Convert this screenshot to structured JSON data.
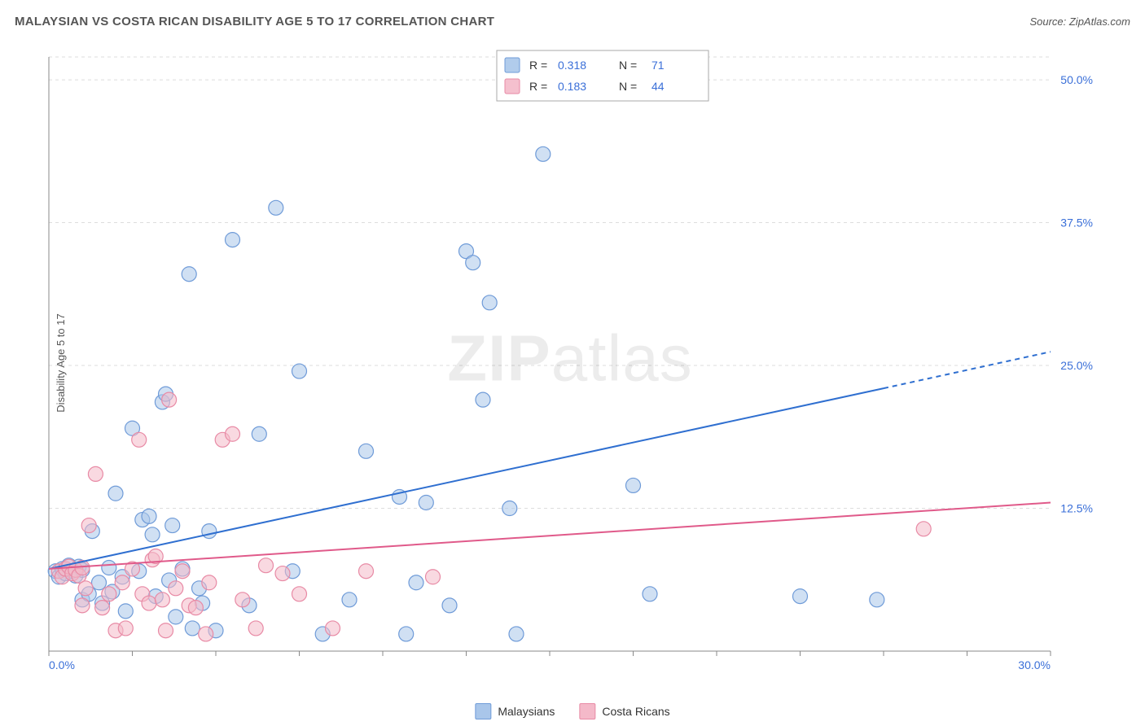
{
  "title": "MALAYSIAN VS COSTA RICAN DISABILITY AGE 5 TO 17 CORRELATION CHART",
  "source_label": "Source: ",
  "source_name": "ZipAtlas.com",
  "y_axis_label": "Disability Age 5 to 17",
  "watermark_zip": "ZIP",
  "watermark_atlas": "atlas",
  "chart": {
    "type": "scatter",
    "xlim": [
      0,
      30
    ],
    "ylim": [
      0,
      52
    ],
    "x_ticks": [
      0,
      2.5,
      5,
      7.5,
      10,
      12.5,
      15,
      17.5,
      20,
      22.5,
      25,
      27.5,
      30
    ],
    "x_tick_labels": {
      "0": "0.0%",
      "30": "30.0%"
    },
    "y_gridlines": [
      12.5,
      25,
      37.5,
      50,
      52
    ],
    "y_tick_labels": {
      "12.5": "12.5%",
      "25": "25.0%",
      "37.5": "37.5%",
      "50": "50.0%"
    },
    "grid_color": "#dddddd",
    "axis_color": "#888888",
    "marker_radius": 9,
    "marker_stroke_width": 1.2,
    "line_width": 2,
    "series": [
      {
        "name": "Malaysians",
        "fill": "#a9c6ea",
        "fill_opacity": 0.55,
        "stroke": "#6f9bd8",
        "line_color": "#2f6fd0",
        "R": "0.318",
        "N": "71",
        "trend": {
          "x1": 0,
          "y1": 7.2,
          "x2": 25,
          "y2": 23.0,
          "dash_from_x": 25,
          "x_end": 30,
          "y_end": 26.2
        },
        "points": [
          [
            0.2,
            7.0
          ],
          [
            0.3,
            6.5
          ],
          [
            0.4,
            7.2
          ],
          [
            0.5,
            6.8
          ],
          [
            0.6,
            7.5
          ],
          [
            0.7,
            7.0
          ],
          [
            0.8,
            6.6
          ],
          [
            0.9,
            7.4
          ],
          [
            1.0,
            7.1
          ],
          [
            1.0,
            4.5
          ],
          [
            1.2,
            5.0
          ],
          [
            1.3,
            10.5
          ],
          [
            1.5,
            6.0
          ],
          [
            1.6,
            4.2
          ],
          [
            1.8,
            7.3
          ],
          [
            1.9,
            5.2
          ],
          [
            2.0,
            13.8
          ],
          [
            2.2,
            6.5
          ],
          [
            2.3,
            3.5
          ],
          [
            2.5,
            19.5
          ],
          [
            2.7,
            7.0
          ],
          [
            2.8,
            11.5
          ],
          [
            3.0,
            11.8
          ],
          [
            3.1,
            10.2
          ],
          [
            3.2,
            4.8
          ],
          [
            3.4,
            21.8
          ],
          [
            3.5,
            22.5
          ],
          [
            3.6,
            6.2
          ],
          [
            3.7,
            11.0
          ],
          [
            3.8,
            3.0
          ],
          [
            4.0,
            7.2
          ],
          [
            4.2,
            33.0
          ],
          [
            4.3,
            2.0
          ],
          [
            4.5,
            5.5
          ],
          [
            4.6,
            4.2
          ],
          [
            4.8,
            10.5
          ],
          [
            5.0,
            1.8
          ],
          [
            5.5,
            36.0
          ],
          [
            6.0,
            4.0
          ],
          [
            6.3,
            19.0
          ],
          [
            6.8,
            38.8
          ],
          [
            7.3,
            7.0
          ],
          [
            7.5,
            24.5
          ],
          [
            8.2,
            1.5
          ],
          [
            9.0,
            4.5
          ],
          [
            9.5,
            17.5
          ],
          [
            10.5,
            13.5
          ],
          [
            10.7,
            1.5
          ],
          [
            11.0,
            6.0
          ],
          [
            11.3,
            13.0
          ],
          [
            12.0,
            4.0
          ],
          [
            12.5,
            35.0
          ],
          [
            12.7,
            34.0
          ],
          [
            13.0,
            22.0
          ],
          [
            13.2,
            30.5
          ],
          [
            13.8,
            12.5
          ],
          [
            14.0,
            1.5
          ],
          [
            14.8,
            43.5
          ],
          [
            17.5,
            14.5
          ],
          [
            18.0,
            5.0
          ],
          [
            22.5,
            4.8
          ],
          [
            24.8,
            4.5
          ]
        ]
      },
      {
        "name": "Costa Ricans",
        "fill": "#f4b9c9",
        "fill_opacity": 0.55,
        "stroke": "#e88aa5",
        "line_color": "#e05a8a",
        "R": "0.183",
        "N": "44",
        "trend": {
          "x1": 0,
          "y1": 7.2,
          "x2": 30,
          "y2": 13.0
        },
        "points": [
          [
            0.3,
            7.0
          ],
          [
            0.4,
            6.5
          ],
          [
            0.5,
            7.2
          ],
          [
            0.6,
            7.4
          ],
          [
            0.7,
            6.8
          ],
          [
            0.8,
            7.1
          ],
          [
            0.9,
            6.6
          ],
          [
            1.0,
            7.3
          ],
          [
            1.0,
            4.0
          ],
          [
            1.1,
            5.5
          ],
          [
            1.2,
            11.0
          ],
          [
            1.4,
            15.5
          ],
          [
            1.6,
            3.8
          ],
          [
            1.8,
            5.0
          ],
          [
            2.0,
            1.8
          ],
          [
            2.2,
            6.0
          ],
          [
            2.3,
            2.0
          ],
          [
            2.5,
            7.2
          ],
          [
            2.7,
            18.5
          ],
          [
            2.8,
            5.0
          ],
          [
            3.0,
            4.2
          ],
          [
            3.1,
            8.0
          ],
          [
            3.2,
            8.3
          ],
          [
            3.4,
            4.5
          ],
          [
            3.5,
            1.8
          ],
          [
            3.6,
            22.0
          ],
          [
            3.8,
            5.5
          ],
          [
            4.0,
            7.0
          ],
          [
            4.2,
            4.0
          ],
          [
            4.4,
            3.8
          ],
          [
            4.7,
            1.5
          ],
          [
            4.8,
            6.0
          ],
          [
            5.2,
            18.5
          ],
          [
            5.5,
            19.0
          ],
          [
            5.8,
            4.5
          ],
          [
            6.2,
            2.0
          ],
          [
            6.5,
            7.5
          ],
          [
            7.0,
            6.8
          ],
          [
            7.5,
            5.0
          ],
          [
            8.5,
            2.0
          ],
          [
            9.5,
            7.0
          ],
          [
            11.5,
            6.5
          ],
          [
            26.2,
            10.7
          ]
        ]
      }
    ]
  },
  "legend_box": {
    "border_color": "#aaaaaa",
    "bg": "#ffffff",
    "label_color": "#333333",
    "value_color": "#3a6fd8",
    "R_label": "R =",
    "N_label": "N ="
  },
  "label_colors": {
    "x_start": "#3a6fd8",
    "x_end": "#3a6fd8",
    "y_labels": "#3a6fd8"
  }
}
